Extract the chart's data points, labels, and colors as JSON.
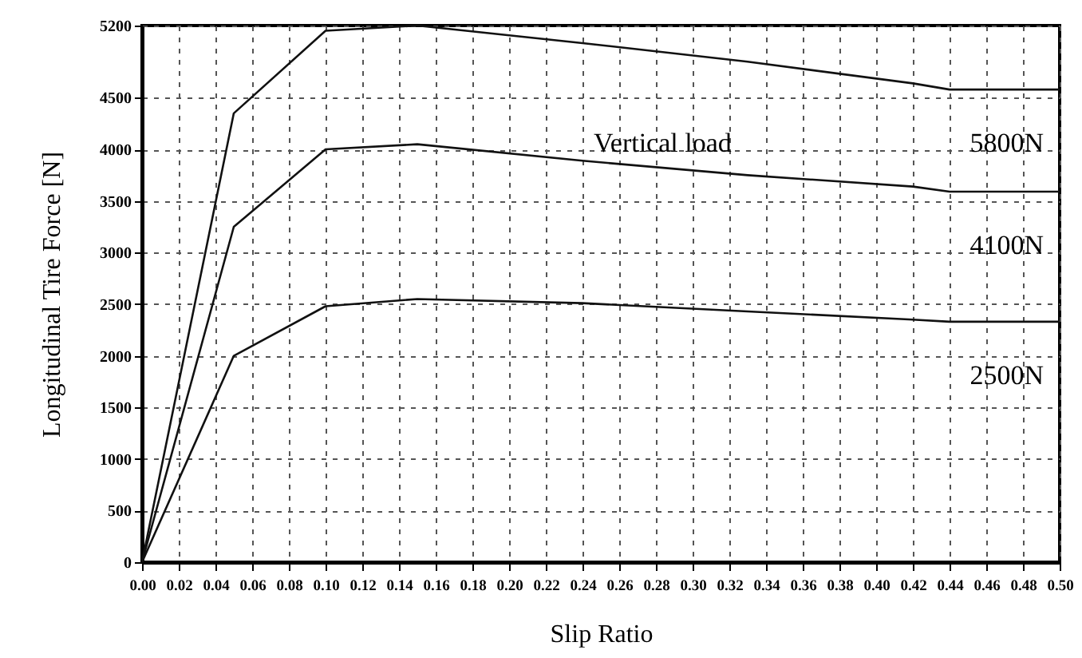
{
  "chart_data": {
    "type": "line",
    "xlabel": "Slip Ratio",
    "ylabel": "Longitudinal Tire Force [N]",
    "annotations": [
      "Vertical load"
    ],
    "xlim": [
      0,
      0.5
    ],
    "ylim": [
      0,
      5200
    ],
    "xticks": [
      {
        "value": 0,
        "label": "0.00"
      },
      {
        "value": 0.02,
        "label": "0.02"
      },
      {
        "value": 0.04,
        "label": "0.04"
      },
      {
        "value": 0.06,
        "label": "0.06"
      },
      {
        "value": 0.08,
        "label": "0.08"
      },
      {
        "value": 0.1,
        "label": "0.10"
      },
      {
        "value": 0.12,
        "label": "0.12"
      },
      {
        "value": 0.14,
        "label": "0.14"
      },
      {
        "value": 0.16,
        "label": "0.16"
      },
      {
        "value": 0.18,
        "label": "0.18"
      },
      {
        "value": 0.2,
        "label": "0.20"
      },
      {
        "value": 0.22,
        "label": "0.22"
      },
      {
        "value": 0.24,
        "label": "0.24"
      },
      {
        "value": 0.26,
        "label": "0.26"
      },
      {
        "value": 0.28,
        "label": "0.28"
      },
      {
        "value": 0.3,
        "label": "0.30"
      },
      {
        "value": 0.32,
        "label": "0.32"
      },
      {
        "value": 0.34,
        "label": "0.34"
      },
      {
        "value": 0.36,
        "label": "0.36"
      },
      {
        "value": 0.38,
        "label": "0.38"
      },
      {
        "value": 0.4,
        "label": "0.40"
      },
      {
        "value": 0.42,
        "label": "0.42"
      },
      {
        "value": 0.44,
        "label": "0.44"
      },
      {
        "value": 0.46,
        "label": "0.46"
      },
      {
        "value": 0.48,
        "label": "0.48"
      },
      {
        "value": 0.5,
        "label": "0.50"
      }
    ],
    "yticks": [
      0,
      500,
      1000,
      1500,
      2000,
      2500,
      3000,
      3500,
      4000,
      4500,
      5200
    ],
    "grid": true,
    "line_style": "solid",
    "x": [
      0,
      0.05,
      0.1,
      0.15,
      0.24,
      0.33,
      0.42,
      0.44,
      0.5
    ],
    "series": [
      {
        "name": "5800N",
        "color": "#111111",
        "values": [
          0,
          4350,
          5150,
          5200,
          5030,
          4850,
          4640,
          4580,
          4580
        ]
      },
      {
        "name": "4100N",
        "color": "#111111",
        "values": [
          0,
          3250,
          4000,
          4050,
          3890,
          3750,
          3640,
          3590,
          3590
        ]
      },
      {
        "name": "2500N",
        "color": "#111111",
        "values": [
          0,
          2000,
          2480,
          2550,
          2510,
          2430,
          2350,
          2330,
          2330
        ]
      }
    ]
  }
}
